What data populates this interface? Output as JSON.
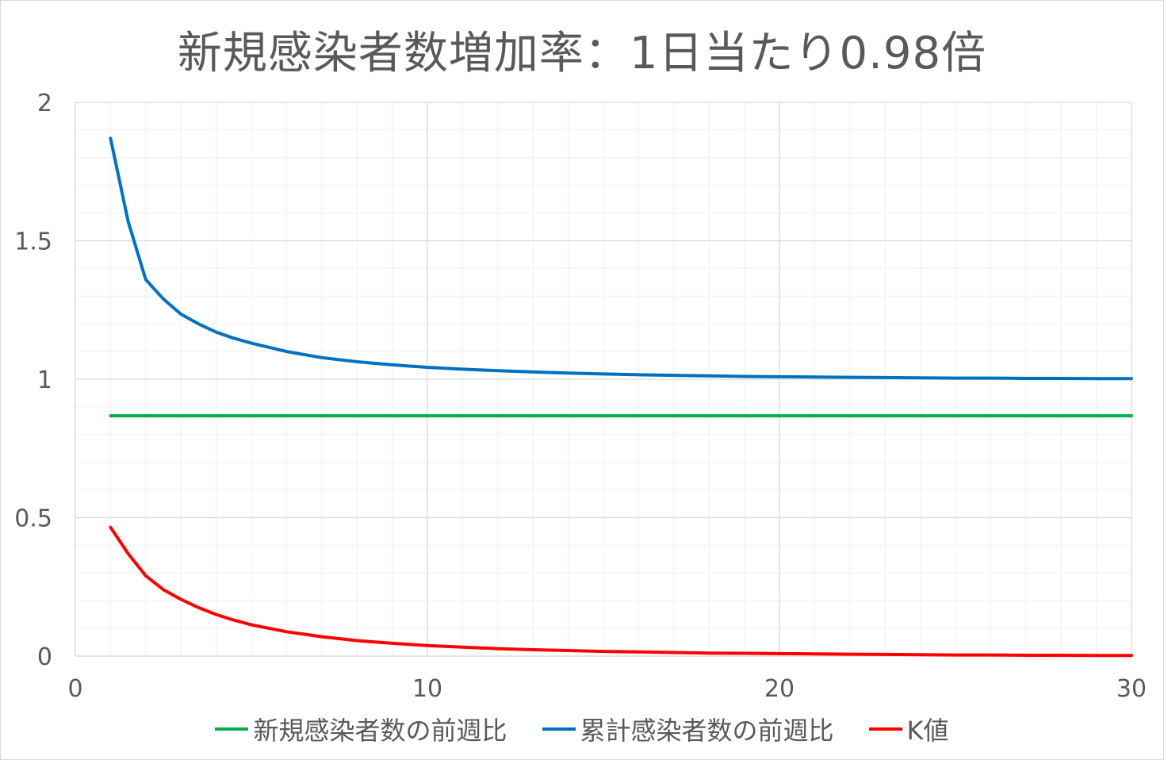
{
  "chart_data": {
    "type": "line",
    "title": "新規感染者数増加率：1日当たり0.98倍",
    "xlim": [
      0,
      30
    ],
    "ylim": [
      0,
      2
    ],
    "x_ticks": [
      "0",
      "10",
      "20",
      "30"
    ],
    "y_ticks": [
      "0",
      "0.5",
      "1",
      "1.5",
      "2"
    ],
    "grid": {
      "major": true,
      "minor": true
    },
    "legend_position": "bottom",
    "x": [
      1,
      1.5,
      2,
      2.5,
      3,
      3.5,
      4,
      4.5,
      5,
      6,
      7,
      8,
      9,
      10,
      11,
      12,
      13,
      14,
      15,
      16,
      17,
      18,
      19,
      20,
      21,
      22,
      23,
      24,
      25,
      26,
      27,
      28,
      29,
      30
    ],
    "series": [
      {
        "name": "新規感染者数の前週比",
        "color": "#00b050",
        "values": [
          0.868,
          0.868,
          0.868,
          0.868,
          0.868,
          0.868,
          0.868,
          0.868,
          0.868,
          0.868,
          0.868,
          0.868,
          0.868,
          0.868,
          0.868,
          0.868,
          0.868,
          0.868,
          0.868,
          0.868,
          0.868,
          0.868,
          0.868,
          0.868,
          0.868,
          0.868,
          0.868,
          0.868,
          0.868,
          0.868,
          0.868,
          0.868,
          0.868,
          0.868
        ]
      },
      {
        "name": "累計感染者数の前週比",
        "color": "#0070c0",
        "values": [
          1.87,
          1.57,
          1.36,
          1.29,
          1.235,
          1.2,
          1.17,
          1.148,
          1.13,
          1.1,
          1.078,
          1.063,
          1.052,
          1.043,
          1.036,
          1.031,
          1.026,
          1.022,
          1.019,
          1.016,
          1.014,
          1.012,
          1.01,
          1.009,
          1.008,
          1.007,
          1.006,
          1.005,
          1.004,
          1.004,
          1.003,
          1.003,
          1.002,
          1.002
        ]
      },
      {
        "name": "K値",
        "color": "#ff0000",
        "values": [
          0.465,
          0.37,
          0.29,
          0.24,
          0.205,
          0.175,
          0.15,
          0.13,
          0.113,
          0.088,
          0.07,
          0.056,
          0.046,
          0.038,
          0.032,
          0.027,
          0.023,
          0.02,
          0.017,
          0.015,
          0.013,
          0.011,
          0.01,
          0.009,
          0.008,
          0.007,
          0.006,
          0.005,
          0.004,
          0.004,
          0.003,
          0.003,
          0.002,
          0.002
        ]
      }
    ]
  }
}
